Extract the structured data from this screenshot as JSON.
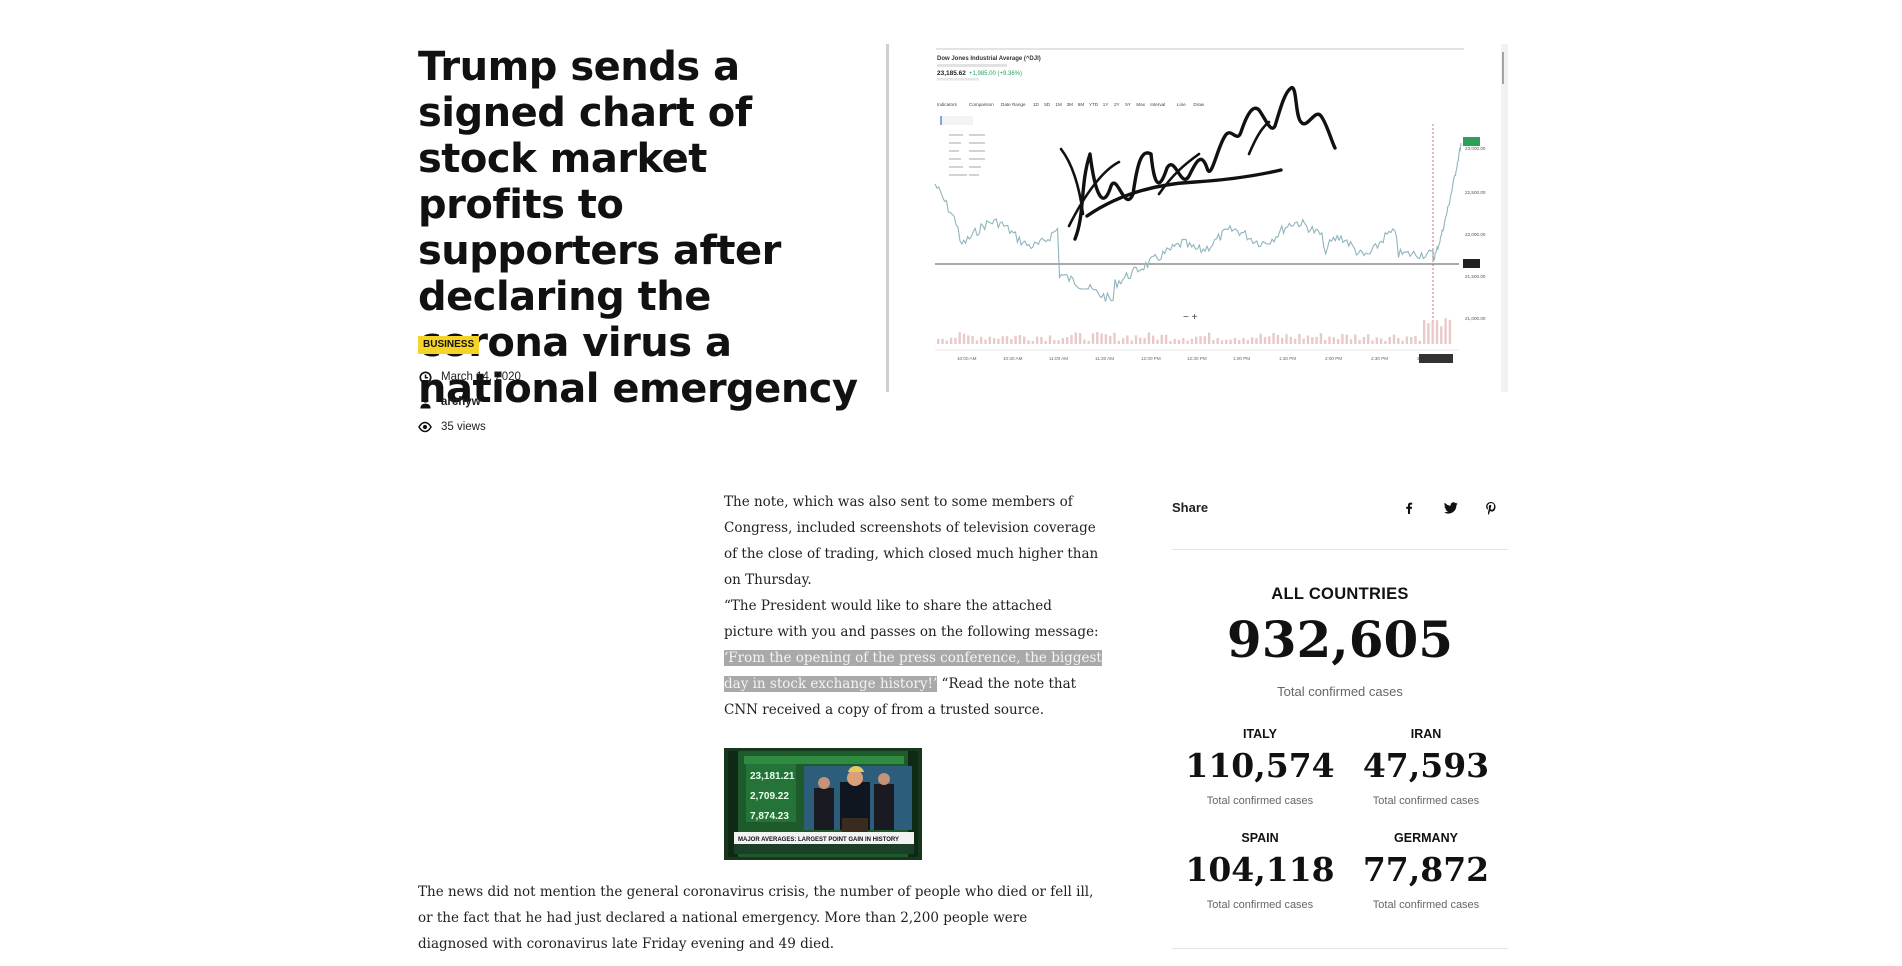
{
  "article": {
    "title": "Trump sends a signed chart of stock market profits to supporters after declaring the corona virus a national emergency",
    "category": "BUSINESS",
    "date": "March 14, 2020",
    "author": "archyw",
    "views": "35 views"
  },
  "hero_image": {
    "chart_title": "Dow Jones Industrial Average (^DJI)",
    "price": "23,185.62",
    "change": "+1,985.00 (+9.36%)",
    "toolbar": [
      "Indicators",
      "Comparison",
      "Date Range",
      "1D",
      "5D",
      "1M",
      "3M",
      "6M",
      "YTD",
      "1Y",
      "2Y",
      "5Y",
      "Max",
      "Interval",
      "Line",
      "Draw"
    ],
    "time_labels": [
      "10:00 AM",
      "10:30 AM",
      "11:00 AM",
      "11:30 AM",
      "12:00 PM",
      "12:30 PM",
      "1:00 PM",
      "1:30 PM",
      "2:00 PM",
      "2:30 PM",
      "3:00 PM"
    ],
    "price_labels": [
      "23,000.00",
      "22,500.00",
      "22,000.00",
      "21,500.00",
      "21,000.00"
    ]
  },
  "body": {
    "p1": "The note, which was also sent to some members of Congress, included screenshots of television coverage of the close of trading, which closed much higher than on Thursday.",
    "p2_start": "“The President would like to share the attached picture with you and passes on the following message: ",
    "p2_highlight": "‘From the opening of the press conference, the biggest day in stock exchange history!’",
    "p2_end": " “Read the note that CNN received a copy of from a trusted source.",
    "p3": "The news did not mention the general coronavirus crisis, the number of people who died or fell ill, or the fact that he had just declared a national emergency. More than 2,200 people were diagnosed with coronavirus late Friday evening and 49 died."
  },
  "tv_image": {
    "tickers": [
      "23,181.21",
      "2,709.22",
      "7,874.23"
    ],
    "banner": "MAJOR AVERAGES: LARGEST POINT GAIN IN HISTORY"
  },
  "sidebar": {
    "share_label": "Share",
    "all": {
      "label": "ALL COUNTRIES",
      "value": "932,605",
      "sub": "Total confirmed cases"
    },
    "countries": [
      {
        "label": "ITALY",
        "value": "110,574",
        "sub": "Total confirmed cases"
      },
      {
        "label": "IRAN",
        "value": "47,593",
        "sub": "Total confirmed cases"
      },
      {
        "label": "SPAIN",
        "value": "104,118",
        "sub": "Total confirmed cases"
      },
      {
        "label": "GERMANY",
        "value": "77,872",
        "sub": "Total confirmed cases"
      }
    ]
  },
  "colors": {
    "badge": "#f5d327",
    "highlight": "#a9a9a9",
    "chart_line": "#8fb5be",
    "chart_up": "#2aa05a"
  }
}
